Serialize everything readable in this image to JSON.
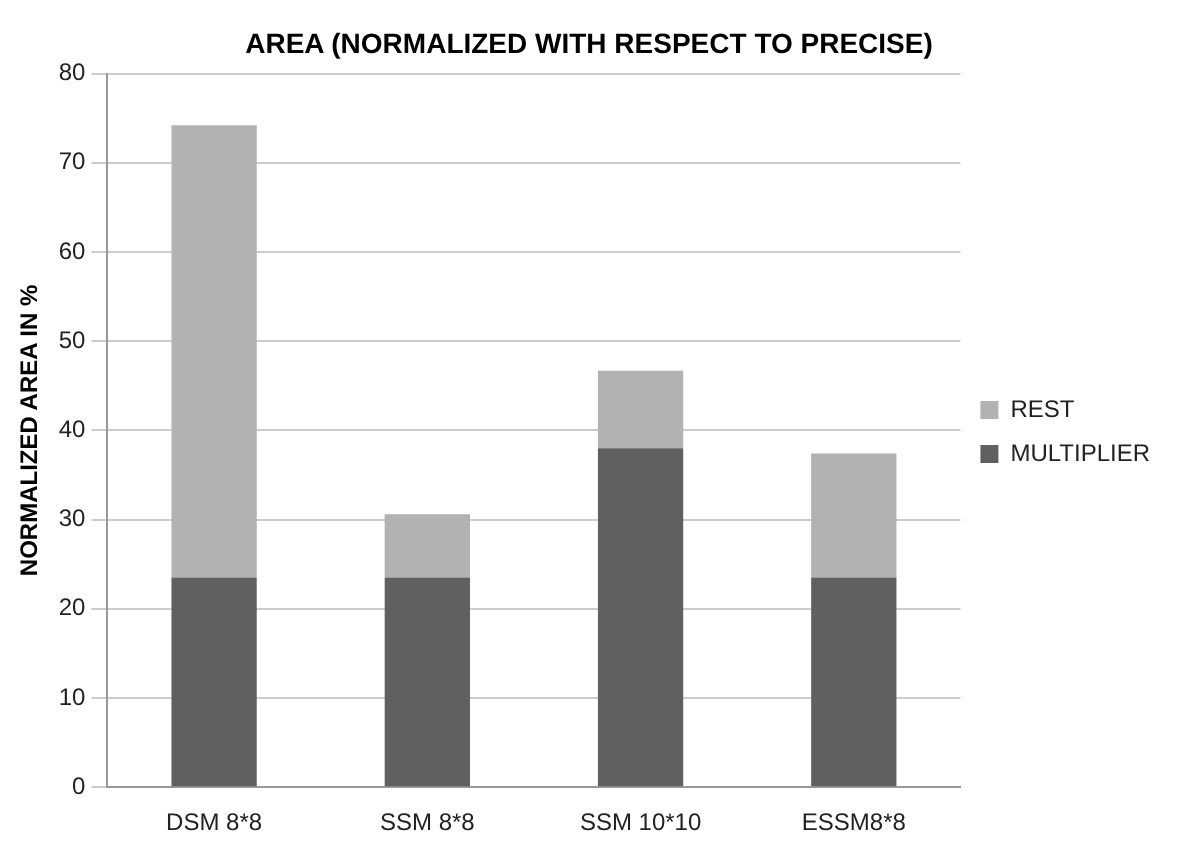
{
  "chart_data": {
    "type": "bar",
    "title": "AREA (NORMALIZED WITH RESPECT TO PRECISE)",
    "ylabel": "NORMALIZED AREA IN %",
    "categories": [
      "DSM 8*8",
      "SSM 8*8",
      "SSM 10*10",
      "ESSM8*8"
    ],
    "series": [
      {
        "name": "MULTIPLIER",
        "color": "#606060",
        "values": [
          23.5,
          23.5,
          38,
          23.5
        ]
      },
      {
        "name": "REST",
        "color": "#b2b2b2",
        "values": [
          50.7,
          7.1,
          8.7,
          13.9
        ]
      }
    ],
    "stacked": true,
    "ylim": [
      0,
      80
    ],
    "yticks": [
      0,
      10,
      20,
      30,
      40,
      50,
      60,
      70,
      80
    ],
    "grid": "y",
    "legend": "right"
  }
}
